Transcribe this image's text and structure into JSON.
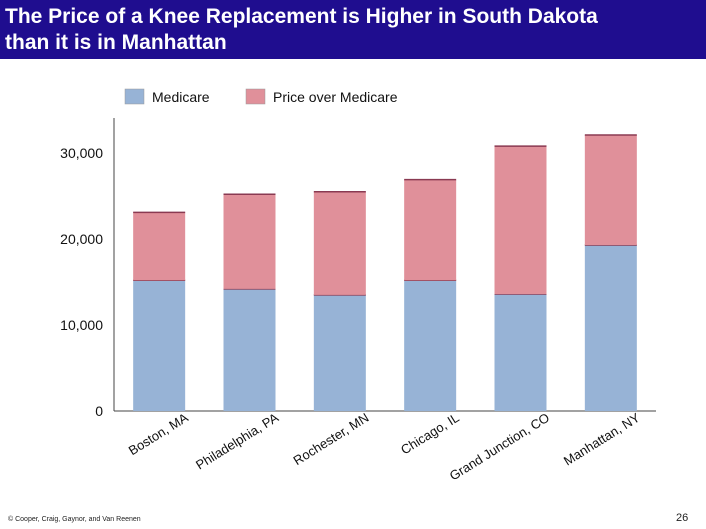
{
  "slide": {
    "title_line1": "The Price of a Knee Replacement is Higher in South Dakota",
    "title_line2": "than it is in Manhattan",
    "footer": "© Cooper, Craig, Gaynor, and Van Reenen",
    "page_number": "26"
  },
  "chart_data": {
    "type": "bar",
    "stacked": true,
    "title": "The Price of a Knee Replacement is Higher in South Dakota than it is in Manhattan",
    "categories": [
      "Boston, MA",
      "Philadelphia, PA",
      "Rochester, MN",
      "Chicago, IL",
      "Grand Junction, CO",
      "Manhattan, NY"
    ],
    "series": [
      {
        "name": "Medicare",
        "color": "#97b3d6",
        "values": [
          15200,
          14200,
          13500,
          15200,
          13600,
          19300
        ]
      },
      {
        "name": "Price over Medicare",
        "color": "#e0909a",
        "values": [
          7900,
          11000,
          12000,
          11700,
          17200,
          12800
        ]
      }
    ],
    "ylim": [
      0,
      34000
    ],
    "yticks": [
      0,
      10000,
      20000,
      30000
    ],
    "ytick_labels": [
      "0",
      "10,000",
      "20,000",
      "30,000"
    ],
    "xlabel": "",
    "ylabel": "",
    "legend": "top",
    "grid": false
  }
}
